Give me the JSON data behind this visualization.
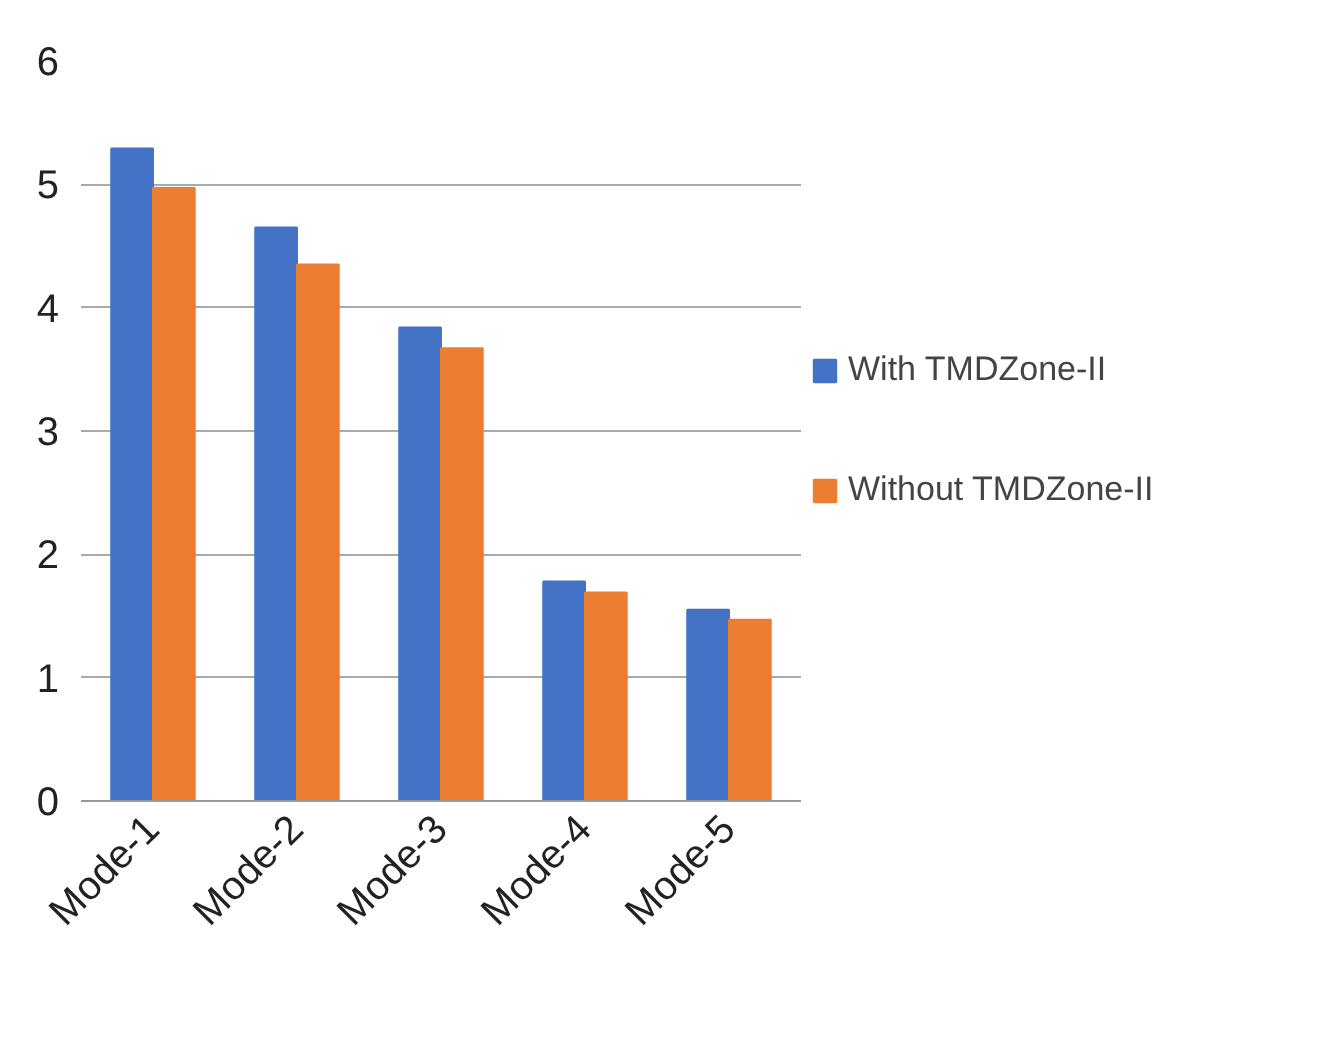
{
  "chart_data": {
    "type": "bar",
    "categories": [
      "Mode-1",
      "Mode-2",
      "Mode-3",
      "Mode-4",
      "Mode-5"
    ],
    "series": [
      {
        "name": "With TMDZone-II",
        "color": "#4472c4",
        "values": [
          5.29,
          4.65,
          3.84,
          1.78,
          1.55
        ]
      },
      {
        "name": "Without TMDZone-II",
        "color": "#ed7d31",
        "values": [
          4.97,
          4.35,
          3.67,
          1.69,
          1.47
        ]
      }
    ],
    "ylim": [
      0,
      6
    ],
    "yticks": [
      0,
      1,
      2,
      3,
      4,
      5,
      6
    ],
    "grid": "y",
    "legend": "right"
  }
}
